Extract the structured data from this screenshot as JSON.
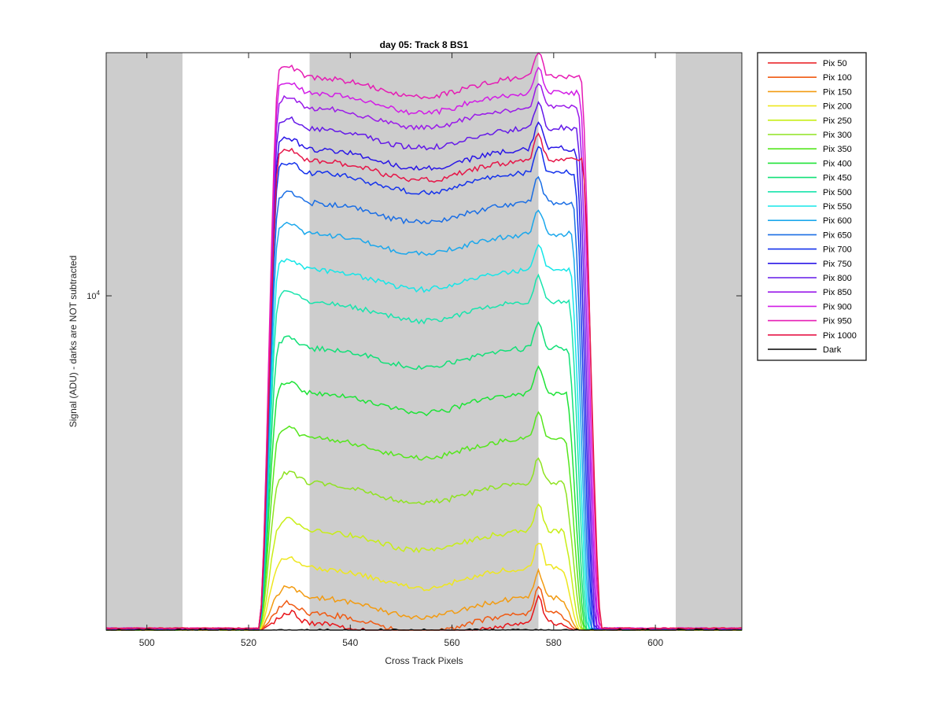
{
  "chart_data": {
    "type": "line",
    "title": "day 05: Track 8  BS1",
    "xlabel": "Cross Track Pixels",
    "ylabel": "Signal (ADU) - darks are NOT subtracted",
    "xlim": [
      492,
      617
    ],
    "xticks": [
      500,
      520,
      540,
      560,
      580,
      600
    ],
    "yscale": "log",
    "ylim": [
      3000,
      24000
    ],
    "yticks": [
      {
        "value": 10000,
        "label": "10",
        "exp": "4"
      }
    ],
    "grid": false,
    "legend_position": "outside-right",
    "shaded_regions": [
      [
        492,
        507
      ],
      [
        532,
        577
      ],
      [
        604,
        617
      ]
    ],
    "plateau_range": [
      526,
      581
    ],
    "profile_shape": {
      "edge_left": 522,
      "edge_right": 583,
      "left_peak_x": 528,
      "right_peak_x": 577,
      "dip_center_x": 554
    },
    "series": [
      {
        "name": "Pix 50",
        "color": "#e8161b",
        "plateau": 3080,
        "floor": 3000
      },
      {
        "name": "Pix 100",
        "color": "#f05a13",
        "plateau": 3190,
        "floor": 3000
      },
      {
        "name": "Pix 150",
        "color": "#f29b11",
        "plateau": 3380,
        "floor": 3000
      },
      {
        "name": "Pix 200",
        "color": "#eee71f",
        "plateau": 3760,
        "floor": 3000
      },
      {
        "name": "Pix 250",
        "color": "#c8ee16",
        "plateau": 4300,
        "floor": 3000
      },
      {
        "name": "Pix 300",
        "color": "#8fe321",
        "plateau": 5100,
        "floor": 3005
      },
      {
        "name": "Pix 350",
        "color": "#55e61d",
        "plateau": 6000,
        "floor": 3005
      },
      {
        "name": "Pix 400",
        "color": "#1fe338",
        "plateau": 7050,
        "floor": 3005
      },
      {
        "name": "Pix 450",
        "color": "#12e078",
        "plateau": 8300,
        "floor": 3005
      },
      {
        "name": "Pix 500",
        "color": "#19e4ad",
        "plateau": 9800,
        "floor": 3010
      },
      {
        "name": "Pix 550",
        "color": "#16e6e8",
        "plateau": 11000,
        "floor": 3010
      },
      {
        "name": "Pix 600",
        "color": "#1aa7ec",
        "plateau": 12500,
        "floor": 3010
      },
      {
        "name": "Pix 650",
        "color": "#1a6ee5",
        "plateau": 14000,
        "floor": 3010
      },
      {
        "name": "Pix 700",
        "color": "#1432ec",
        "plateau": 15600,
        "floor": 3015
      },
      {
        "name": "Pix 750",
        "color": "#2a17e6",
        "plateau": 17000,
        "floor": 3015
      },
      {
        "name": "Pix 800",
        "color": "#6419e8",
        "plateau": 18300,
        "floor": 3015
      },
      {
        "name": "Pix 850",
        "color": "#9a1ae9",
        "plateau": 19700,
        "floor": 3020
      },
      {
        "name": "Pix 900",
        "color": "#d21ce6",
        "plateau": 20800,
        "floor": 3020
      },
      {
        "name": "Pix 950",
        "color": "#e61cb4",
        "plateau": 22000,
        "floor": 3020
      },
      {
        "name": "Pix 1000",
        "color": "#e61648",
        "plateau": 16300,
        "floor": 3020
      },
      {
        "name": "Dark",
        "color": "#000000",
        "plateau": 2995,
        "floor": 2995
      }
    ],
    "colors": {
      "shade": "#cdcdcd",
      "axes": "#262626"
    }
  }
}
